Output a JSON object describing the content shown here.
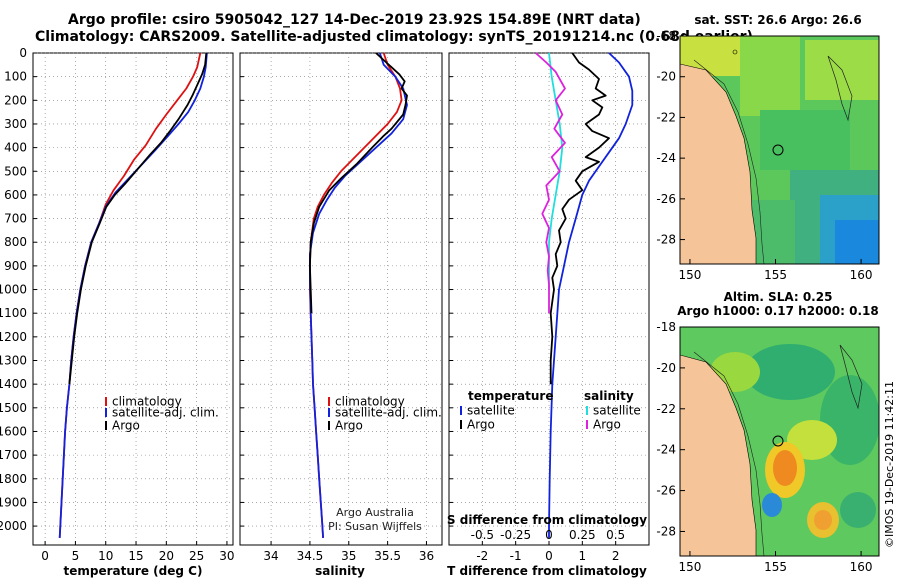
{
  "title": {
    "line1": "Argo profile: csiro 5905042_127 14-Dec-2019 23.92S 154.89E (NRT data)",
    "line2": "Climatology: CARS2009. Satellite-adjusted climatology: synTS_20191214.nc (0.68d earlier)"
  },
  "depth_axis": {
    "ylim": [
      0,
      2080
    ],
    "ticks": [
      0,
      100,
      200,
      300,
      400,
      500,
      600,
      700,
      800,
      900,
      1000,
      1100,
      1200,
      1300,
      1400,
      1500,
      1600,
      1700,
      1800,
      1900,
      2000
    ]
  },
  "colors": {
    "climatology": "#dd1111",
    "satellite": "#1122dd",
    "argo": "#000000",
    "argo_salinity": "#dd22dd",
    "satellite_salinity": "#22dddd"
  },
  "chart_data": [
    {
      "type": "line",
      "panel": "temperature",
      "xlabel": "temperature (deg C)",
      "xlim": [
        -2,
        31
      ],
      "xticks": [
        0,
        5,
        10,
        15,
        20,
        25,
        30
      ],
      "legend": [
        "climatology",
        "satellite-adj. clim.",
        "Argo"
      ],
      "series": [
        {
          "name": "climatology",
          "color": "#dd1111",
          "points": [
            [
              25.6,
              0
            ],
            [
              25.1,
              60
            ],
            [
              24.4,
              100
            ],
            [
              23.3,
              150
            ],
            [
              21.8,
              200
            ],
            [
              20.0,
              260
            ],
            [
              18.3,
              320
            ],
            [
              16.6,
              390
            ],
            [
              14.7,
              450
            ],
            [
              13.0,
              520
            ],
            [
              11.3,
              580
            ],
            [
              10.0,
              640
            ],
            [
              8.9,
              720
            ],
            [
              7.6,
              800
            ],
            [
              6.6,
              900
            ],
            [
              5.8,
              1000
            ],
            [
              5.2,
              1100
            ],
            [
              4.7,
              1200
            ],
            [
              4.3,
              1300
            ],
            [
              4.0,
              1400
            ],
            [
              3.6,
              1500
            ],
            [
              3.3,
              1600
            ],
            [
              3.1,
              1700
            ],
            [
              2.9,
              1800
            ],
            [
              2.7,
              1900
            ],
            [
              2.5,
              2000
            ],
            [
              2.4,
              2050
            ]
          ]
        },
        {
          "name": "satellite-adj. clim.",
          "color": "#1122dd",
          "points": [
            [
              26.7,
              0
            ],
            [
              26.5,
              60
            ],
            [
              26.2,
              100
            ],
            [
              25.6,
              150
            ],
            [
              24.7,
              200
            ],
            [
              23.6,
              250
            ],
            [
              22.0,
              300
            ],
            [
              20.3,
              350
            ],
            [
              18.2,
              410
            ],
            [
              16.0,
              470
            ],
            [
              13.8,
              530
            ],
            [
              11.6,
              590
            ],
            [
              10.0,
              650
            ],
            [
              8.9,
              720
            ],
            [
              7.6,
              800
            ],
            [
              6.6,
              900
            ],
            [
              5.8,
              1000
            ],
            [
              5.2,
              1100
            ],
            [
              4.7,
              1200
            ],
            [
              4.3,
              1300
            ],
            [
              4.0,
              1400
            ],
            [
              3.6,
              1500
            ],
            [
              3.3,
              1600
            ],
            [
              3.1,
              1700
            ],
            [
              2.9,
              1800
            ],
            [
              2.7,
              1900
            ],
            [
              2.5,
              2000
            ],
            [
              2.4,
              2050
            ]
          ]
        },
        {
          "name": "Argo",
          "color": "#000000",
          "points": [
            [
              26.6,
              0
            ],
            [
              26.4,
              50
            ],
            [
              25.9,
              90
            ],
            [
              25.2,
              130
            ],
            [
              24.3,
              180
            ],
            [
              23.5,
              220
            ],
            [
              22.0,
              280
            ],
            [
              20.6,
              330
            ],
            [
              19.1,
              380
            ],
            [
              17.3,
              430
            ],
            [
              15.3,
              490
            ],
            [
              13.3,
              550
            ],
            [
              11.5,
              600
            ],
            [
              10.1,
              650
            ],
            [
              9.0,
              720
            ],
            [
              7.7,
              800
            ],
            [
              6.7,
              900
            ],
            [
              5.9,
              1000
            ],
            [
              5.3,
              1100
            ],
            [
              4.8,
              1200
            ],
            [
              4.4,
              1300
            ],
            [
              4.0,
              1400
            ]
          ]
        }
      ]
    },
    {
      "type": "line",
      "panel": "salinity",
      "xlabel": "salinity",
      "xlim": [
        33.6,
        36.2
      ],
      "xticks": [
        34,
        34.5,
        35,
        35.5,
        36
      ],
      "legend": [
        "climatology",
        "satellite-adj. clim.",
        "Argo"
      ],
      "annotations": [
        "Argo Australia",
        "PI: Susan Wijffels"
      ],
      "series": [
        {
          "name": "climatology",
          "color": "#dd1111",
          "points": [
            [
              35.45,
              0
            ],
            [
              35.5,
              50
            ],
            [
              35.6,
              100
            ],
            [
              35.66,
              150
            ],
            [
              35.68,
              200
            ],
            [
              35.62,
              250
            ],
            [
              35.5,
              300
            ],
            [
              35.35,
              350
            ],
            [
              35.2,
              400
            ],
            [
              35.05,
              450
            ],
            [
              34.9,
              500
            ],
            [
              34.78,
              550
            ],
            [
              34.68,
              600
            ],
            [
              34.6,
              650
            ],
            [
              34.55,
              700
            ],
            [
              34.51,
              800
            ],
            [
              34.5,
              900
            ],
            [
              34.5,
              1000
            ],
            [
              34.51,
              1100
            ],
            [
              34.52,
              1200
            ],
            [
              34.53,
              1300
            ],
            [
              34.54,
              1400
            ],
            [
              34.56,
              1500
            ],
            [
              34.58,
              1600
            ],
            [
              34.6,
              1700
            ],
            [
              34.62,
              1800
            ],
            [
              34.64,
              1900
            ],
            [
              34.66,
              2000
            ],
            [
              34.67,
              2050
            ]
          ]
        },
        {
          "name": "satellite-adj. clim.",
          "color": "#1122dd",
          "points": [
            [
              35.4,
              0
            ],
            [
              35.45,
              50
            ],
            [
              35.6,
              100
            ],
            [
              35.7,
              150
            ],
            [
              35.75,
              220
            ],
            [
              35.7,
              280
            ],
            [
              35.55,
              340
            ],
            [
              35.35,
              400
            ],
            [
              35.15,
              460
            ],
            [
              34.95,
              520
            ],
            [
              34.82,
              570
            ],
            [
              34.72,
              620
            ],
            [
              34.62,
              680
            ],
            [
              34.54,
              760
            ],
            [
              34.5,
              850
            ],
            [
              34.5,
              950
            ],
            [
              34.51,
              1100
            ],
            [
              34.52,
              1200
            ],
            [
              34.53,
              1300
            ],
            [
              34.54,
              1400
            ],
            [
              34.56,
              1500
            ],
            [
              34.58,
              1600
            ],
            [
              34.6,
              1700
            ],
            [
              34.62,
              1800
            ],
            [
              34.64,
              1900
            ],
            [
              34.66,
              2000
            ],
            [
              34.67,
              2050
            ]
          ]
        },
        {
          "name": "Argo",
          "color": "#000000",
          "points": [
            [
              35.35,
              0
            ],
            [
              35.45,
              30
            ],
            [
              35.55,
              60
            ],
            [
              35.65,
              90
            ],
            [
              35.72,
              120
            ],
            [
              35.68,
              150
            ],
            [
              35.75,
              180
            ],
            [
              35.73,
              220
            ],
            [
              35.7,
              260
            ],
            [
              35.55,
              320
            ],
            [
              35.45,
              350
            ],
            [
              35.3,
              400
            ],
            [
              35.1,
              470
            ],
            [
              34.9,
              530
            ],
            [
              34.75,
              580
            ],
            [
              34.62,
              650
            ],
            [
              34.55,
              720
            ],
            [
              34.51,
              800
            ],
            [
              34.5,
              900
            ],
            [
              34.51,
              1000
            ],
            [
              34.52,
              1100
            ]
          ]
        }
      ]
    },
    {
      "type": "line",
      "panel": "differences",
      "xlabel": "T difference from climatology",
      "xlim": [
        -3,
        3
      ],
      "xticks": [
        -2,
        -1,
        0,
        1,
        2
      ],
      "top_axis_label": "S difference from climatology",
      "top_ticks": [
        "-0.5",
        "-0.25",
        "0",
        "0.25",
        "0.5"
      ],
      "top_tick_values": [
        -0.5,
        -0.25,
        0,
        0.25,
        0.5
      ],
      "legend": {
        "left_title": "temperature",
        "left": [
          "satellite",
          "Argo"
        ],
        "right_title": "salinity",
        "right": [
          "satellite",
          "Argo"
        ]
      },
      "series": [
        {
          "name": "T satellite",
          "color": "#1122dd",
          "units": "T",
          "points": [
            [
              1.8,
              0
            ],
            [
              2.1,
              40
            ],
            [
              2.4,
              100
            ],
            [
              2.5,
              160
            ],
            [
              2.5,
              220
            ],
            [
              2.3,
              300
            ],
            [
              2.1,
              360
            ],
            [
              1.8,
              420
            ],
            [
              1.5,
              480
            ],
            [
              1.2,
              540
            ],
            [
              1.0,
              600
            ],
            [
              0.8,
              700
            ],
            [
              0.6,
              800
            ],
            [
              0.45,
              900
            ],
            [
              0.3,
              1000
            ],
            [
              0.2,
              1200
            ],
            [
              0.1,
              1400
            ],
            [
              0.05,
              1600
            ],
            [
              0.02,
              1800
            ],
            [
              0,
              2000
            ],
            [
              0,
              2050
            ]
          ]
        },
        {
          "name": "T Argo",
          "color": "#000000",
          "units": "T",
          "points": [
            [
              0.7,
              0
            ],
            [
              0.9,
              40
            ],
            [
              1.2,
              70
            ],
            [
              1.5,
              110
            ],
            [
              1.4,
              150
            ],
            [
              1.7,
              180
            ],
            [
              1.3,
              200
            ],
            [
              1.6,
              230
            ],
            [
              1.5,
              260
            ],
            [
              1.1,
              300
            ],
            [
              1.3,
              330
            ],
            [
              1.8,
              360
            ],
            [
              1.5,
              400
            ],
            [
              1.1,
              440
            ],
            [
              1.5,
              460
            ],
            [
              1.0,
              500
            ],
            [
              0.8,
              540
            ],
            [
              1.0,
              580
            ],
            [
              0.6,
              620
            ],
            [
              0.4,
              660
            ],
            [
              0.5,
              700
            ],
            [
              0.3,
              750
            ],
            [
              0.35,
              800
            ],
            [
              0.2,
              850
            ],
            [
              0.25,
              900
            ],
            [
              0.1,
              950
            ],
            [
              0.15,
              1000
            ],
            [
              0.05,
              1100
            ],
            [
              0.1,
              1200
            ],
            [
              0.05,
              1300
            ],
            [
              0.05,
              1400
            ]
          ]
        },
        {
          "name": "S satellite",
          "color": "#22dddd",
          "units": "S",
          "points": [
            [
              0.0,
              0
            ],
            [
              0.02,
              100
            ],
            [
              0.05,
              200
            ],
            [
              0.08,
              300
            ],
            [
              0.1,
              400
            ],
            [
              0.08,
              500
            ],
            [
              0.05,
              600
            ],
            [
              0.02,
              700
            ],
            [
              0.0,
              800
            ],
            [
              0.0,
              900
            ],
            [
              0.0,
              1000
            ]
          ]
        },
        {
          "name": "S Argo",
          "color": "#dd22dd",
          "units": "S",
          "points": [
            [
              -0.1,
              0
            ],
            [
              -0.02,
              40
            ],
            [
              0.05,
              80
            ],
            [
              0.12,
              150
            ],
            [
              0.05,
              200
            ],
            [
              0.1,
              260
            ],
            [
              0.04,
              320
            ],
            [
              0.12,
              380
            ],
            [
              0.02,
              440
            ],
            [
              0.08,
              500
            ],
            [
              -0.02,
              560
            ],
            [
              0.0,
              620
            ],
            [
              -0.05,
              680
            ],
            [
              0.0,
              740
            ],
            [
              -0.02,
              800
            ],
            [
              0.0,
              860
            ],
            [
              -0.01,
              920
            ],
            [
              0.0,
              980
            ],
            [
              0.0,
              1100
            ]
          ]
        }
      ]
    }
  ],
  "maps": [
    {
      "title": "sat. SST: 26.6 Argo: 26.6",
      "xticks": [
        "150",
        "155",
        "160"
      ],
      "yticks": [
        "-18",
        "-20",
        "-22",
        "-24",
        "-26",
        "-28"
      ]
    },
    {
      "title_line1": "Altim. SLA: 0.25",
      "title_line2": "Argo h1000: 0.17 h2000: 0.18",
      "xticks": [
        "150",
        "155",
        "160"
      ],
      "yticks": [
        "-18",
        "-20",
        "-22",
        "-24",
        "-26",
        "-28"
      ]
    }
  ],
  "credit": "©IMOS 19-Dec-2019 11:42:11"
}
